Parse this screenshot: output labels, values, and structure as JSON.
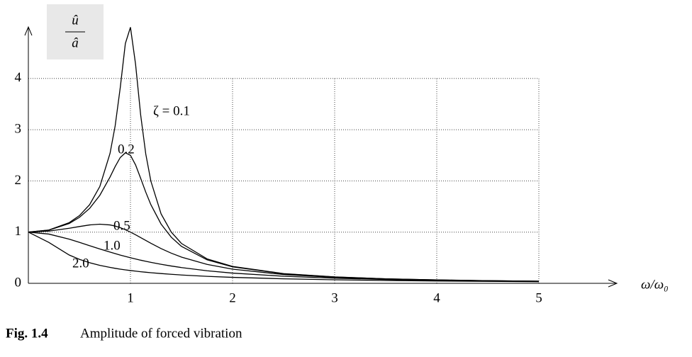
{
  "chart_data": {
    "type": "line",
    "x_label": "ω/ω₀",
    "y_label": {
      "numerator": "û",
      "denominator": "â"
    },
    "caption": {
      "number": "Fig. 1.4",
      "text": "Amplitude of forced vibration"
    },
    "x": [
      0,
      0.2,
      0.4,
      0.5,
      0.6,
      0.7,
      0.8,
      0.85,
      0.9,
      0.95,
      1.0,
      1.05,
      1.1,
      1.15,
      1.2,
      1.3,
      1.4,
      1.5,
      1.75,
      2,
      2.5,
      3,
      3.5,
      4,
      4.5,
      5
    ],
    "series": [
      {
        "name": "ζ = 0.1",
        "color": "#000000",
        "values": [
          1,
          1.041,
          1.185,
          1.322,
          1.536,
          1.891,
          2.538,
          3.073,
          3.821,
          4.683,
          5,
          4.279,
          3.288,
          2.525,
          1.995,
          1.356,
          1.0,
          0.778,
          0.478,
          0.33,
          0.19,
          0.125,
          0.0887,
          0.0666,
          0.0519,
          0.0416
        ]
      },
      {
        "name": "0.2",
        "color": "#000000",
        "values": [
          1,
          1.038,
          1.169,
          1.288,
          1.463,
          1.719,
          2.076,
          2.279,
          2.457,
          2.549,
          2.5,
          2.313,
          2.051,
          1.78,
          1.536,
          1.157,
          0.9,
          0.721,
          0.459,
          0.322,
          0.187,
          0.124,
          0.0882,
          0.0663,
          0.0517,
          0.0415
        ]
      },
      {
        "name": "0.5",
        "color": "#000000",
        "values": [
          1,
          1.02,
          1.075,
          1.109,
          1.14,
          1.155,
          1.14,
          1.118,
          1.087,
          1.047,
          1,
          0.948,
          0.893,
          0.837,
          0.782,
          0.679,
          0.589,
          0.512,
          0.37,
          0.277,
          0.172,
          0.117,
          0.0849,
          0.0644,
          0.0506,
          0.0408
        ]
      },
      {
        "name": "1.0",
        "color": "#000000",
        "values": [
          1,
          0.962,
          0.862,
          0.8,
          0.735,
          0.671,
          0.61,
          0.581,
          0.552,
          0.526,
          0.5,
          0.476,
          0.452,
          0.431,
          0.41,
          0.372,
          0.338,
          0.308,
          0.246,
          0.2,
          0.138,
          0.1,
          0.0755,
          0.0588,
          0.0471,
          0.0385
        ]
      },
      {
        "name": "2.0",
        "color": "#000000",
        "values": [
          1,
          0.8,
          0.553,
          0.468,
          0.403,
          0.351,
          0.311,
          0.293,
          0.277,
          0.263,
          0.25,
          0.238,
          0.227,
          0.217,
          0.207,
          0.191,
          0.176,
          0.163,
          0.137,
          0.117,
          0.0885,
          0.0693,
          0.0557,
          0.0456,
          0.0379,
          0.032
        ]
      }
    ],
    "xlim": [
      0,
      5
    ],
    "ylim": [
      0,
      5
    ],
    "xticks": [
      1,
      2,
      3,
      4,
      5
    ],
    "yticks": [
      0,
      1,
      2,
      3,
      4
    ],
    "grid": true
  }
}
